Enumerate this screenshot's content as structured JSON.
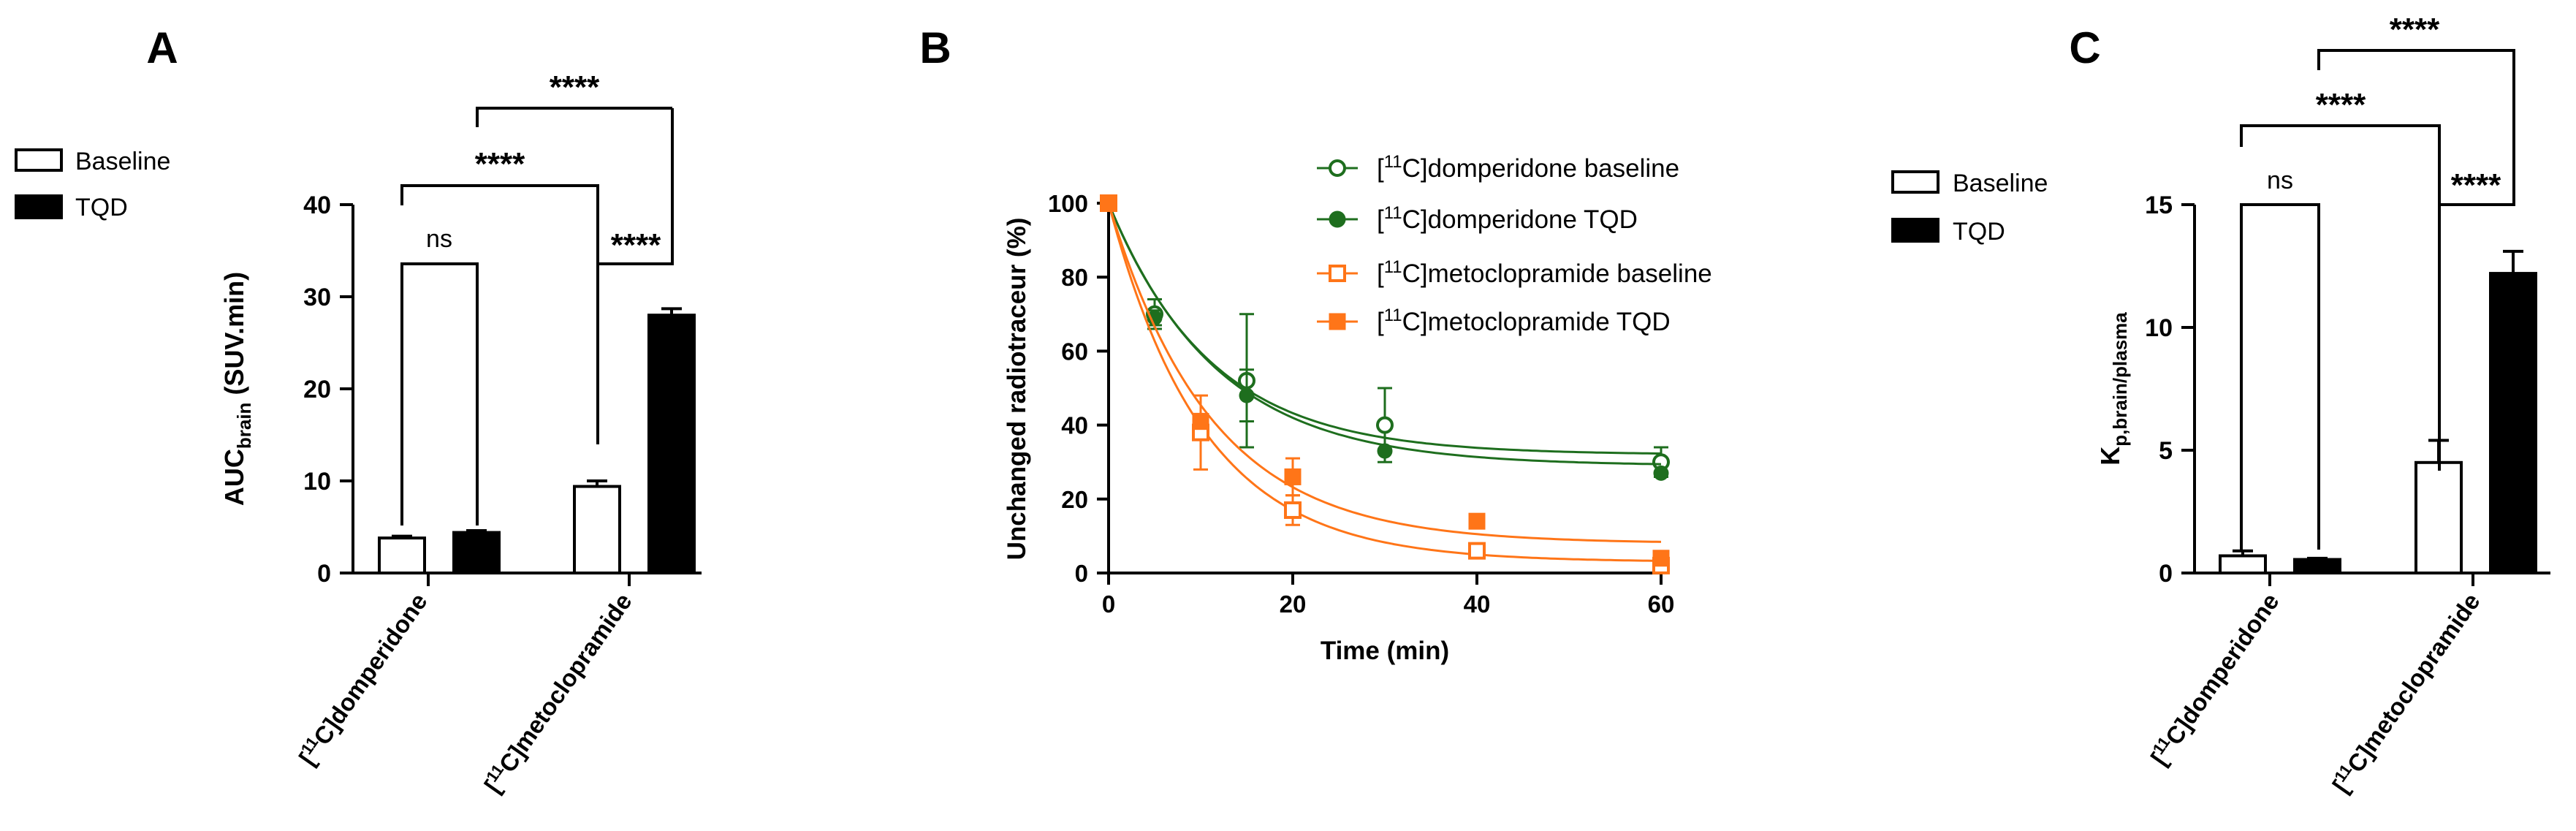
{
  "panels": {
    "A": {
      "letter": "A"
    },
    "B": {
      "letter": "B"
    },
    "C": {
      "letter": "C"
    }
  },
  "colors": {
    "dom": "#1e6e1e",
    "meto": "#ff7518",
    "black": "#000000"
  },
  "chart_data": [
    {
      "id": "A",
      "type": "bar",
      "ylabel_main": "AUC",
      "ylabel_sub": "brain",
      "ylabel_tail": " (SUV.min)",
      "ylim": [
        0,
        40
      ],
      "yticks": [
        "0",
        "10",
        "20",
        "30",
        "40"
      ],
      "categories": [
        {
          "pre": "[",
          "sup": "11",
          "post": "C]domperidone"
        },
        {
          "pre": "[",
          "sup": "11",
          "post": "C]metoclopramide"
        }
      ],
      "legend": [
        "Baseline",
        "TQD"
      ],
      "series": [
        {
          "name": "Baseline",
          "values": [
            3.8,
            9.4
          ],
          "errors": [
            0.2,
            0.6
          ]
        },
        {
          "name": "TQD",
          "values": [
            4.4,
            28.0
          ],
          "errors": [
            0.2,
            0.7
          ]
        }
      ],
      "annotations": [
        "ns",
        "****",
        "****",
        "****"
      ]
    },
    {
      "id": "B",
      "type": "line",
      "xlabel": "Time (min)",
      "ylabel": "Unchanged radiotraceur (%)",
      "xlim": [
        0,
        60
      ],
      "ylim": [
        0,
        100
      ],
      "xticks": [
        "0",
        "20",
        "40",
        "60"
      ],
      "yticks": [
        "0",
        "20",
        "40",
        "60",
        "80",
        "100"
      ],
      "legend": [
        {
          "pre": "[",
          "sup": "11",
          "post": "C]domperidone baseline"
        },
        {
          "pre": "[",
          "sup": "11",
          "post": "C]domperidone TQD"
        },
        {
          "pre": "[",
          "sup": "11",
          "post": "C]metoclopramide baseline"
        },
        {
          "pre": "[",
          "sup": "11",
          "post": "C]metoclopramide TQD"
        }
      ],
      "series": [
        {
          "name": "[11C]domperidone baseline",
          "x": [
            0,
            5,
            15,
            30,
            60
          ],
          "y": [
            100,
            70,
            52,
            40,
            30
          ],
          "errors": [
            0,
            4,
            18,
            10,
            4
          ],
          "fit": {
            "plateau": 32,
            "k": 0.09
          }
        },
        {
          "name": "[11C]domperidone TQD",
          "x": [
            0,
            5,
            15,
            30,
            60
          ],
          "y": [
            100,
            69,
            48,
            33,
            27
          ],
          "errors": [
            0,
            2,
            7,
            0,
            0
          ],
          "fit": {
            "plateau": 29,
            "k": 0.085
          }
        },
        {
          "name": "[11C]metoclopramide baseline",
          "x": [
            0,
            10,
            20,
            40,
            60
          ],
          "y": [
            100,
            38,
            17,
            6,
            2
          ],
          "errors": [
            0,
            10,
            4,
            0,
            0
          ],
          "fit": {
            "plateau": 3,
            "k": 0.097
          }
        },
        {
          "name": "[11C]metoclopramide TQD",
          "x": [
            0,
            10,
            20,
            40,
            60
          ],
          "y": [
            100,
            41,
            26,
            14,
            4
          ],
          "errors": [
            0,
            2,
            5,
            0,
            0
          ],
          "fit": {
            "plateau": 8,
            "k": 0.09
          }
        }
      ]
    },
    {
      "id": "C",
      "type": "bar",
      "ylabel_main": "K",
      "ylabel_sub": "p,brain/plasma",
      "ylim": [
        0,
        15
      ],
      "yticks": [
        "0",
        "5",
        "10",
        "15"
      ],
      "categories": [
        {
          "pre": "[",
          "sup": "11",
          "post": "C]domperidone"
        },
        {
          "pre": "[",
          "sup": "11",
          "post": "C]metoclopramide"
        }
      ],
      "legend": [
        "Baseline",
        "TQD"
      ],
      "series": [
        {
          "name": "Baseline",
          "values": [
            0.7,
            4.5
          ],
          "errors": [
            0.2,
            0.9
          ]
        },
        {
          "name": "TQD",
          "values": [
            0.55,
            12.2
          ],
          "errors": [
            0.05,
            0.9
          ]
        }
      ],
      "annotations": [
        "ns",
        "****",
        "****",
        "****"
      ]
    }
  ]
}
